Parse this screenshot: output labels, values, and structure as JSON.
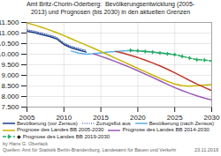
{
  "chart_data": {
    "type": "line",
    "title": "Amt Britz-Chorin-Oderberg:  Bevölkerungsentwicklung (2005-\n2013) und Prognosen (bis 2030) in den aktuellen Grenzen",
    "x": [
      2005,
      2006,
      2007,
      2008,
      2009,
      2010,
      2011,
      2012,
      2013,
      2014,
      2015,
      2016,
      2017,
      2018,
      2019,
      2020,
      2021,
      2022,
      2023,
      2024,
      2025,
      2026,
      2027,
      2028,
      2029,
      2030
    ],
    "series": [
      {
        "name": "Bevölkerung (vor Zensus)",
        "color": "#1a3c8c",
        "line_style": "solid",
        "values": [
          11080,
          11020,
          10930,
          10840,
          10730,
          10460,
          10300,
          10200,
          10100,
          null,
          null,
          null,
          null,
          null,
          null,
          null,
          null,
          null,
          null,
          null,
          null,
          null,
          null,
          null,
          null,
          null
        ]
      },
      {
        "name": "Zuzugsflut aus",
        "color": "#1a3c8c",
        "line_style": "dotted",
        "values": [
          11150,
          11090,
          11000,
          10910,
          10800,
          10530,
          10370,
          10270,
          10170,
          null,
          null,
          null,
          null,
          null,
          null,
          null,
          null,
          null,
          null,
          null,
          null,
          null,
          null,
          null,
          null,
          null
        ]
      },
      {
        "name": "Bevölkerung (nach Zensus)",
        "color": "#5ab0e0",
        "line_style": "solid",
        "values": [
          null,
          null,
          null,
          null,
          null,
          null,
          10150,
          10050,
          10000,
          10020,
          10060,
          10100,
          10130,
          10160,
          10180,
          10160,
          10130,
          10100,
          10060,
          10020,
          9980,
          null,
          null,
          null,
          null,
          null
        ]
      },
      {
        "name": "Prognose des Landes BB 2005-2030",
        "color": "#c8b400",
        "line_style": "solid",
        "values": [
          11480,
          11380,
          11270,
          11150,
          11020,
          10880,
          10730,
          10580,
          10430,
          10280,
          10130,
          9970,
          9810,
          9650,
          9490,
          9330,
          9170,
          9010,
          8860,
          8720,
          8590,
          8510,
          8490,
          8510,
          8540,
          8560
        ]
      },
      {
        "name": "Prognose des Landes BB 2014-2030",
        "color": "#9b59b6",
        "line_style": "solid",
        "values": [
          null,
          null,
          null,
          null,
          null,
          null,
          null,
          null,
          null,
          10020,
          9900,
          9780,
          9650,
          9510,
          9370,
          9220,
          9060,
          8900,
          8740,
          8580,
          8420,
          8280,
          8150,
          8030,
          7930,
          7840
        ]
      },
      {
        "name": null,
        "color": "#c0392b",
        "line_style": "solid",
        "values": [
          null,
          null,
          null,
          null,
          null,
          null,
          null,
          null,
          null,
          null,
          null,
          null,
          10130,
          10050,
          9950,
          9840,
          9720,
          9590,
          9450,
          9290,
          9120,
          8940,
          8760,
          8590,
          8430,
          8280
        ]
      },
      {
        "name": "◆ Prognose des Landes BB 2019-2030",
        "color": "#27ae60",
        "line_style": "dashed",
        "marker": "diamond",
        "values": [
          null,
          null,
          null,
          null,
          null,
          null,
          null,
          null,
          null,
          null,
          null,
          null,
          null,
          null,
          10180,
          10160,
          10130,
          10100,
          10060,
          10020,
          9980,
          9900,
          9820,
          9740,
          9720,
          9680
        ]
      }
    ],
    "xlim": [
      2005,
      2030
    ],
    "xticks": [
      2005,
      2010,
      2015,
      2020,
      2025,
      2030
    ],
    "ylim": [
      7500,
      11500
    ],
    "yticks": [
      {
        "value": 7500,
        "label": "7.500"
      },
      {
        "value": 8000,
        "label": "8.000"
      },
      {
        "value": 8500,
        "label": "8.500"
      },
      {
        "value": 9000,
        "label": "9.000"
      },
      {
        "value": 9500,
        "label": "9.500"
      },
      {
        "value": 10000,
        "label": "10.000"
      },
      {
        "value": 10500,
        "label": "10.500"
      },
      {
        "value": 11000,
        "label": "11.000"
      },
      {
        "value": 11500,
        "label": "11.500"
      }
    ],
    "grid": true,
    "legend": "bottom",
    "annotations": [
      "by Hans G. Oberlack",
      "Quellen: Amt für Statistik Berlin-Brandenburg, Landesamt für Bauen und Verkehr",
      "23.11.2019"
    ]
  }
}
